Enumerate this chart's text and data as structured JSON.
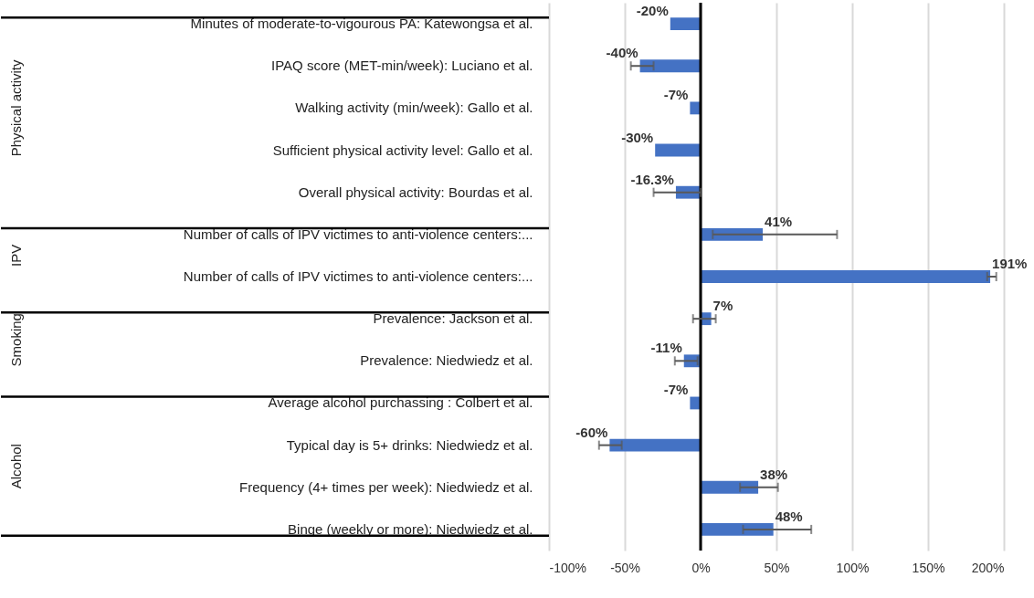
{
  "chart_data": {
    "type": "bar",
    "orientation": "horizontal",
    "categories": [
      "Minutes of moderate-to-vigourous PA: Katewongsa et al.",
      "IPAQ score (MET-min/week): Luciano et al.",
      "Walking activity (min/week): Gallo et al.",
      "Sufficient physical activity level: Gallo et al.",
      "Overall physical activity: Bourdas et al.",
      "Number of calls of IPV victimes to anti-violence centers:...",
      "Number of calls of IPV victimes to anti-violence centers:...",
      "Prevalence: Jackson et al.",
      "Prevalence: Niedwiedz et al.",
      "Average alcohol purchassing : Colbert et al.",
      "Typical day is 5+ drinks: Niedwiedz et al.",
      "Frequency (4+ times per week): Niedwiedz et al.",
      "Binge (weekly or more): Niedwiedz et al."
    ],
    "values": [
      -20,
      -40,
      -7,
      -30,
      -16.3,
      41,
      191,
      7,
      -11,
      -7,
      -60,
      38,
      48
    ],
    "value_labels": [
      "-20%",
      "-40%",
      "-7%",
      "-30%",
      "-16.3%",
      "41%",
      "191%",
      "7%",
      "-11%",
      "-7%",
      "-60%",
      "38%",
      "48%"
    ],
    "errors": [
      null,
      [
        -46,
        -31
      ],
      null,
      null,
      [
        -31,
        0
      ],
      [
        8,
        90
      ],
      [
        189,
        195
      ],
      [
        -5,
        10
      ],
      [
        -17,
        -2
      ],
      null,
      [
        -67,
        -52
      ],
      [
        26,
        51
      ],
      [
        28,
        73
      ]
    ],
    "color": "#4472c4",
    "xlim": [
      -100,
      200
    ],
    "xticks": [
      {
        "value": -100,
        "label": "-100%"
      },
      {
        "value": -50,
        "label": "-50%"
      },
      {
        "value": 0,
        "label": "0%"
      },
      {
        "value": 50,
        "label": "50%"
      },
      {
        "value": 100,
        "label": "100%"
      },
      {
        "value": 150,
        "label": "150%"
      },
      {
        "value": 200,
        "label": "200%"
      }
    ],
    "grid": "x",
    "ref_lines": [
      {
        "axis": "x",
        "value": 0,
        "color": "#000000"
      }
    ],
    "annotations": [
      "Physical activity",
      "IPV",
      "Smoking",
      "Alcohol"
    ]
  }
}
